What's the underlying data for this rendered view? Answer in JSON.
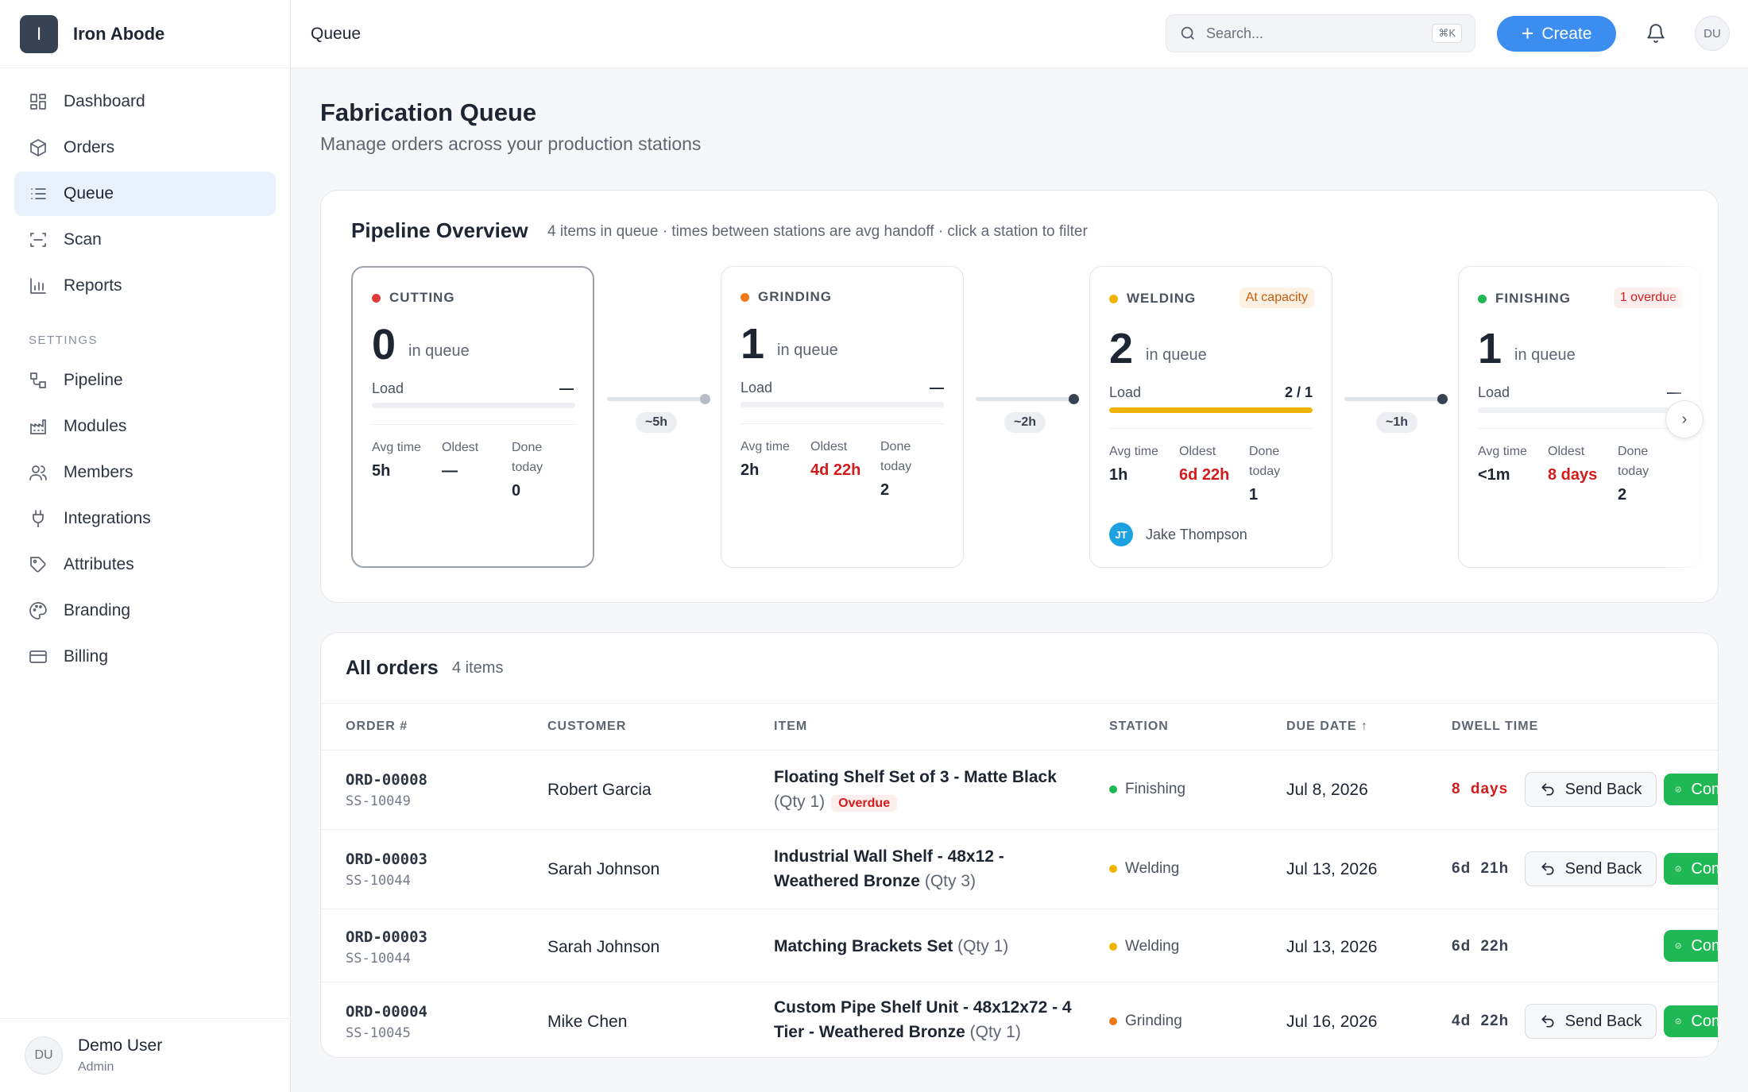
{
  "app": {
    "name": "Iron Abode",
    "logo_letter": "I"
  },
  "header": {
    "title": "Queue",
    "search_placeholder": "Search...",
    "search_shortcut": "⌘K",
    "create_label": "Create",
    "avatar": "DU"
  },
  "sidebar": {
    "items": [
      {
        "label": "Dashboard"
      },
      {
        "label": "Orders"
      },
      {
        "label": "Queue"
      },
      {
        "label": "Scan"
      },
      {
        "label": "Reports"
      }
    ],
    "settings_heading": "SETTINGS",
    "settings": [
      {
        "label": "Pipeline"
      },
      {
        "label": "Modules"
      },
      {
        "label": "Members"
      },
      {
        "label": "Integrations"
      },
      {
        "label": "Attributes"
      },
      {
        "label": "Branding"
      },
      {
        "label": "Billing"
      }
    ],
    "user": {
      "initials": "DU",
      "name": "Demo User",
      "role": "Admin"
    }
  },
  "page": {
    "title": "Fabrication Queue",
    "subtitle": "Manage orders across your production stations"
  },
  "pipeline": {
    "title": "Pipeline Overview",
    "subtitle": "4 items in queue · times between stations are avg handoff · click a station to filter",
    "in_queue_label": "in queue",
    "load_label": "Load",
    "avg_label": "Avg time",
    "oldest_label": "Oldest",
    "done_label": "Done today",
    "stations": [
      {
        "name": "CUTTING",
        "color": "#e03b3b",
        "count": "0",
        "load": "—",
        "load_fraction": 0,
        "avg": "5h",
        "oldest": "—",
        "done": "0",
        "badge": ""
      },
      {
        "name": "GRINDING",
        "color": "#f07a1a",
        "count": "1",
        "load": "—",
        "load_fraction": 0,
        "avg": "2h",
        "oldest": "4d 22h",
        "done": "2",
        "badge": ""
      },
      {
        "name": "WELDING",
        "color": "#f0b400",
        "count": "2",
        "load": "2 / 1",
        "load_fraction": 1,
        "avg": "1h",
        "oldest": "6d 22h",
        "done": "1",
        "badge": "At capacity",
        "assignee_initials": "JT",
        "assignee": "Jake Thompson"
      },
      {
        "name": "FINISHING",
        "color": "#1fb854",
        "count": "1",
        "load": "—",
        "load_fraction": 0,
        "avg": "<1m",
        "oldest": "8 days",
        "done": "2",
        "badge": "1 overdue"
      }
    ],
    "handoffs": [
      "~5h",
      "~2h",
      "~1h"
    ]
  },
  "orders": {
    "title": "All orders",
    "count": "4 items",
    "columns": {
      "order": "ORDER #",
      "customer": "CUSTOMER",
      "item": "ITEM",
      "station": "STATION",
      "due": "DUE DATE",
      "dwell": "DWELL TIME"
    },
    "send_back_label": "Send Back",
    "complete_label": "Complete",
    "overdue_label": "Overdue",
    "rows": [
      {
        "order": "ORD-00008",
        "sub": "SS-10049",
        "customer": "Robert Garcia",
        "item": "Floating Shelf Set of 3 - Matte Black",
        "qty": "(Qty 1)",
        "station": "Finishing",
        "station_color": "#1fb854",
        "due": "Jul 8, 2026",
        "dwell": "8 days"
      },
      {
        "order": "ORD-00003",
        "sub": "SS-10044",
        "customer": "Sarah Johnson",
        "item_line1": "Industrial Wall Shelf - 48x12 -",
        "item_line2": "Weathered Bronze",
        "qty": "(Qty 3)",
        "station": "Welding",
        "station_color": "#f0b400",
        "due": "Jul 13, 2026",
        "dwell": "6d 21h"
      },
      {
        "order": "ORD-00003",
        "sub": "SS-10044",
        "customer": "Sarah Johnson",
        "item": "Matching Brackets Set",
        "qty": "(Qty 1)",
        "station": "Welding",
        "station_color": "#f0b400",
        "due": "Jul 13, 2026",
        "dwell": "6d 22h"
      },
      {
        "order": "ORD-00004",
        "sub": "SS-10045",
        "customer": "Mike Chen",
        "item_line1": "Custom Pipe Shelf Unit - 48x12x72 - 4",
        "item_line2": "Tier - Weathered Bronze",
        "qty": "(Qty 1)",
        "station": "Grinding",
        "station_color": "#f07a1a",
        "due": "Jul 16, 2026",
        "dwell": "4d 22h"
      }
    ]
  }
}
